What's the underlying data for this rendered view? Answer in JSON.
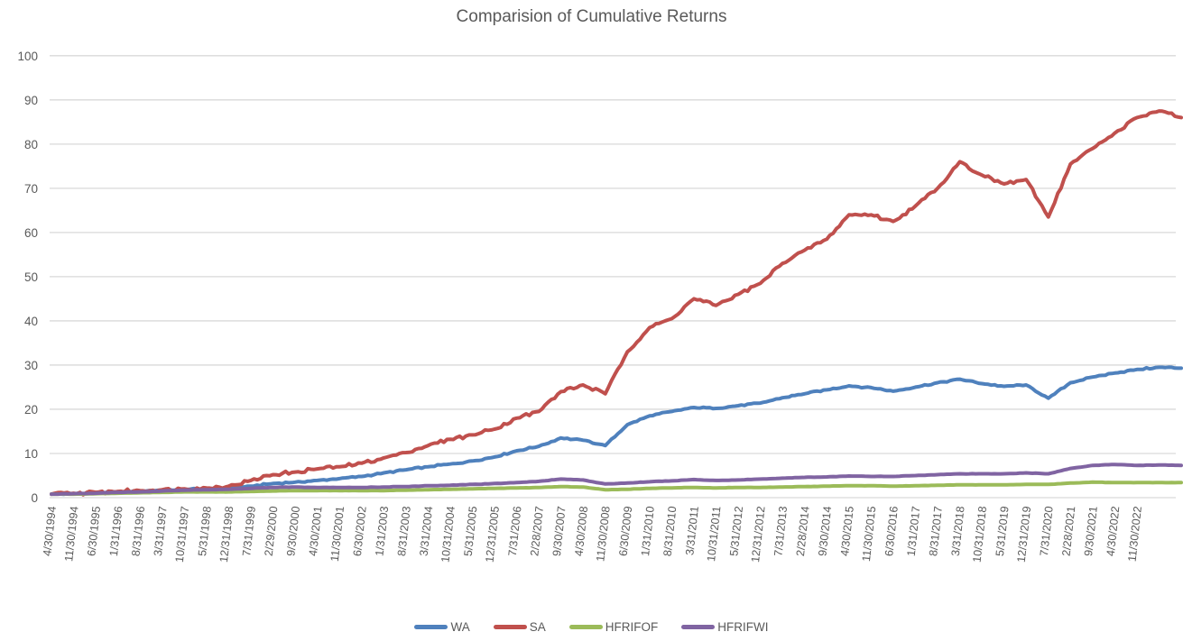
{
  "title": "Comparision of Cumulative Returns",
  "colors": {
    "title_text": "#595959",
    "axis_label_text": "#595959",
    "gridline": "#d9d9d9",
    "background": "#ffffff"
  },
  "chart_data": {
    "type": "line",
    "title": "Comparision of Cumulative Returns",
    "xlabel": "",
    "ylabel": "",
    "ylim": [
      0,
      100
    ],
    "y_ticks": [
      0,
      10,
      20,
      30,
      40,
      50,
      60,
      70,
      80,
      90,
      100
    ],
    "grid": "horizontal",
    "legend_position": "bottom",
    "x_tick_labels": [
      "4/30/1994",
      "11/30/1994",
      "6/30/1995",
      "1/31/1996",
      "8/31/1996",
      "3/31/1997",
      "10/31/1997",
      "5/31/1998",
      "12/31/1998",
      "7/31/1999",
      "2/29/2000",
      "9/30/2000",
      "4/30/2001",
      "11/30/2001",
      "6/30/2002",
      "1/31/2003",
      "8/31/2003",
      "3/31/2004",
      "10/31/2004",
      "5/31/2005",
      "12/31/2005",
      "7/31/2006",
      "2/28/2007",
      "9/30/2007",
      "4/30/2008",
      "11/30/2008",
      "6/30/2009",
      "1/31/2010",
      "8/31/2010",
      "3/31/2011",
      "10/31/2011",
      "5/31/2012",
      "12/31/2012",
      "7/31/2013",
      "2/28/2014",
      "9/30/2014",
      "4/30/2015",
      "11/30/2015",
      "6/30/2016",
      "1/31/2017",
      "8/31/2017",
      "3/31/2018",
      "10/31/2018",
      "5/31/2019",
      "12/31/2019",
      "7/31/2020",
      "2/28/2021",
      "9/30/2021",
      "4/30/2022",
      "11/30/2022"
    ],
    "sampling_note": "monthly line series sampled at each labeled tick (every 7th month); last 2 values extend past the final tick label",
    "series": [
      {
        "name": "WA",
        "color": "#4F81BD",
        "values": [
          0.8,
          0.9,
          1.1,
          1.3,
          1.5,
          1.7,
          1.9,
          2.0,
          2.2,
          2.6,
          3.2,
          3.5,
          3.9,
          4.3,
          4.8,
          5.6,
          6.3,
          7.0,
          7.6,
          8.3,
          9.2,
          10.6,
          11.6,
          13.5,
          13.0,
          11.8,
          16.5,
          18.5,
          19.5,
          20.4,
          20.2,
          20.8,
          21.4,
          22.6,
          23.5,
          24.4,
          25.3,
          24.9,
          24.1,
          25.0,
          26.0,
          26.8,
          25.8,
          25.2,
          25.5,
          22.5,
          26.0,
          27.3,
          28.2,
          29.0,
          29.5,
          29.3
        ]
      },
      {
        "name": "SA",
        "color": "#C0504D",
        "values": [
          0.8,
          1.0,
          1.2,
          1.4,
          1.6,
          1.8,
          2.0,
          2.2,
          2.6,
          3.9,
          5.2,
          5.8,
          6.5,
          7.0,
          7.8,
          9.0,
          10.2,
          11.8,
          13.2,
          14.2,
          15.5,
          18.0,
          19.5,
          24.0,
          25.5,
          23.5,
          33.0,
          38.5,
          40.5,
          45.0,
          43.5,
          46.0,
          48.5,
          53.0,
          56.0,
          58.5,
          64.0,
          64.0,
          62.5,
          66.0,
          70.0,
          76.0,
          73.0,
          71.0,
          72.0,
          63.5,
          75.5,
          79.0,
          82.5,
          86.0,
          87.5,
          86.0
        ]
      },
      {
        "name": "HFRIFOF",
        "color": "#9BBB59",
        "values": [
          0.8,
          0.8,
          0.9,
          1.0,
          1.1,
          1.2,
          1.3,
          1.3,
          1.3,
          1.4,
          1.5,
          1.6,
          1.6,
          1.6,
          1.6,
          1.6,
          1.7,
          1.8,
          1.9,
          2.0,
          2.1,
          2.2,
          2.3,
          2.5,
          2.4,
          1.8,
          1.9,
          2.1,
          2.2,
          2.3,
          2.2,
          2.3,
          2.3,
          2.4,
          2.5,
          2.6,
          2.7,
          2.7,
          2.6,
          2.7,
          2.8,
          2.9,
          2.9,
          2.9,
          3.0,
          3.0,
          3.3,
          3.5,
          3.4,
          3.4,
          3.4,
          3.4
        ]
      },
      {
        "name": "HFRIFWI",
        "color": "#8064A2",
        "values": [
          0.8,
          0.9,
          1.0,
          1.2,
          1.3,
          1.5,
          1.7,
          1.8,
          1.9,
          2.1,
          2.3,
          2.4,
          2.3,
          2.3,
          2.3,
          2.4,
          2.5,
          2.7,
          2.8,
          3.0,
          3.2,
          3.4,
          3.7,
          4.2,
          4.0,
          3.1,
          3.3,
          3.6,
          3.8,
          4.1,
          3.9,
          4.0,
          4.2,
          4.4,
          4.6,
          4.7,
          4.9,
          4.8,
          4.8,
          5.0,
          5.2,
          5.4,
          5.4,
          5.4,
          5.6,
          5.4,
          6.6,
          7.3,
          7.5,
          7.3,
          7.4,
          7.3
        ]
      }
    ]
  }
}
